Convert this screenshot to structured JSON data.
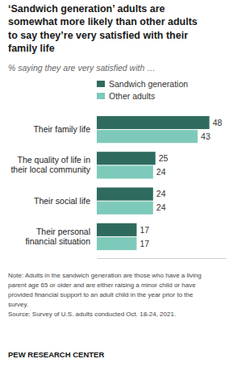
{
  "chart_data": {
    "type": "bar",
    "orientation": "horizontal",
    "title": "‘Sandwich generation’ adults are\nsomewhat more likely than other adults\nto say they’re very satisfied with their\nfamily life",
    "subtitle": "% saying they are very satisfied with …",
    "categories": [
      "Their family life",
      "The quality of life in\ntheir local community",
      "Their social life",
      "Their personal\nfinancial situation"
    ],
    "series": [
      {
        "name": "Sandwich generation",
        "color": "#2e6b5e",
        "values": [
          48,
          25,
          24,
          17
        ]
      },
      {
        "name": "Other adults",
        "color": "#7ecaba",
        "values": [
          43,
          24,
          24,
          17
        ]
      }
    ],
    "xlim": [
      0,
      55
    ],
    "data_labels": true,
    "legend": "top",
    "grid": false,
    "tick_labels": "y",
    "annotations": [
      "Note: Adults in the sandwich generation are those who have a living",
      "parent age 65 or older and are either raising a minor child or have",
      "provided financial support to an adult child in the year prior to the",
      "survey.",
      "Source: Survey of U.S. adults conducted Oct. 18-24, 2021.",
      "PEW RESEARCH CENTER"
    ]
  }
}
